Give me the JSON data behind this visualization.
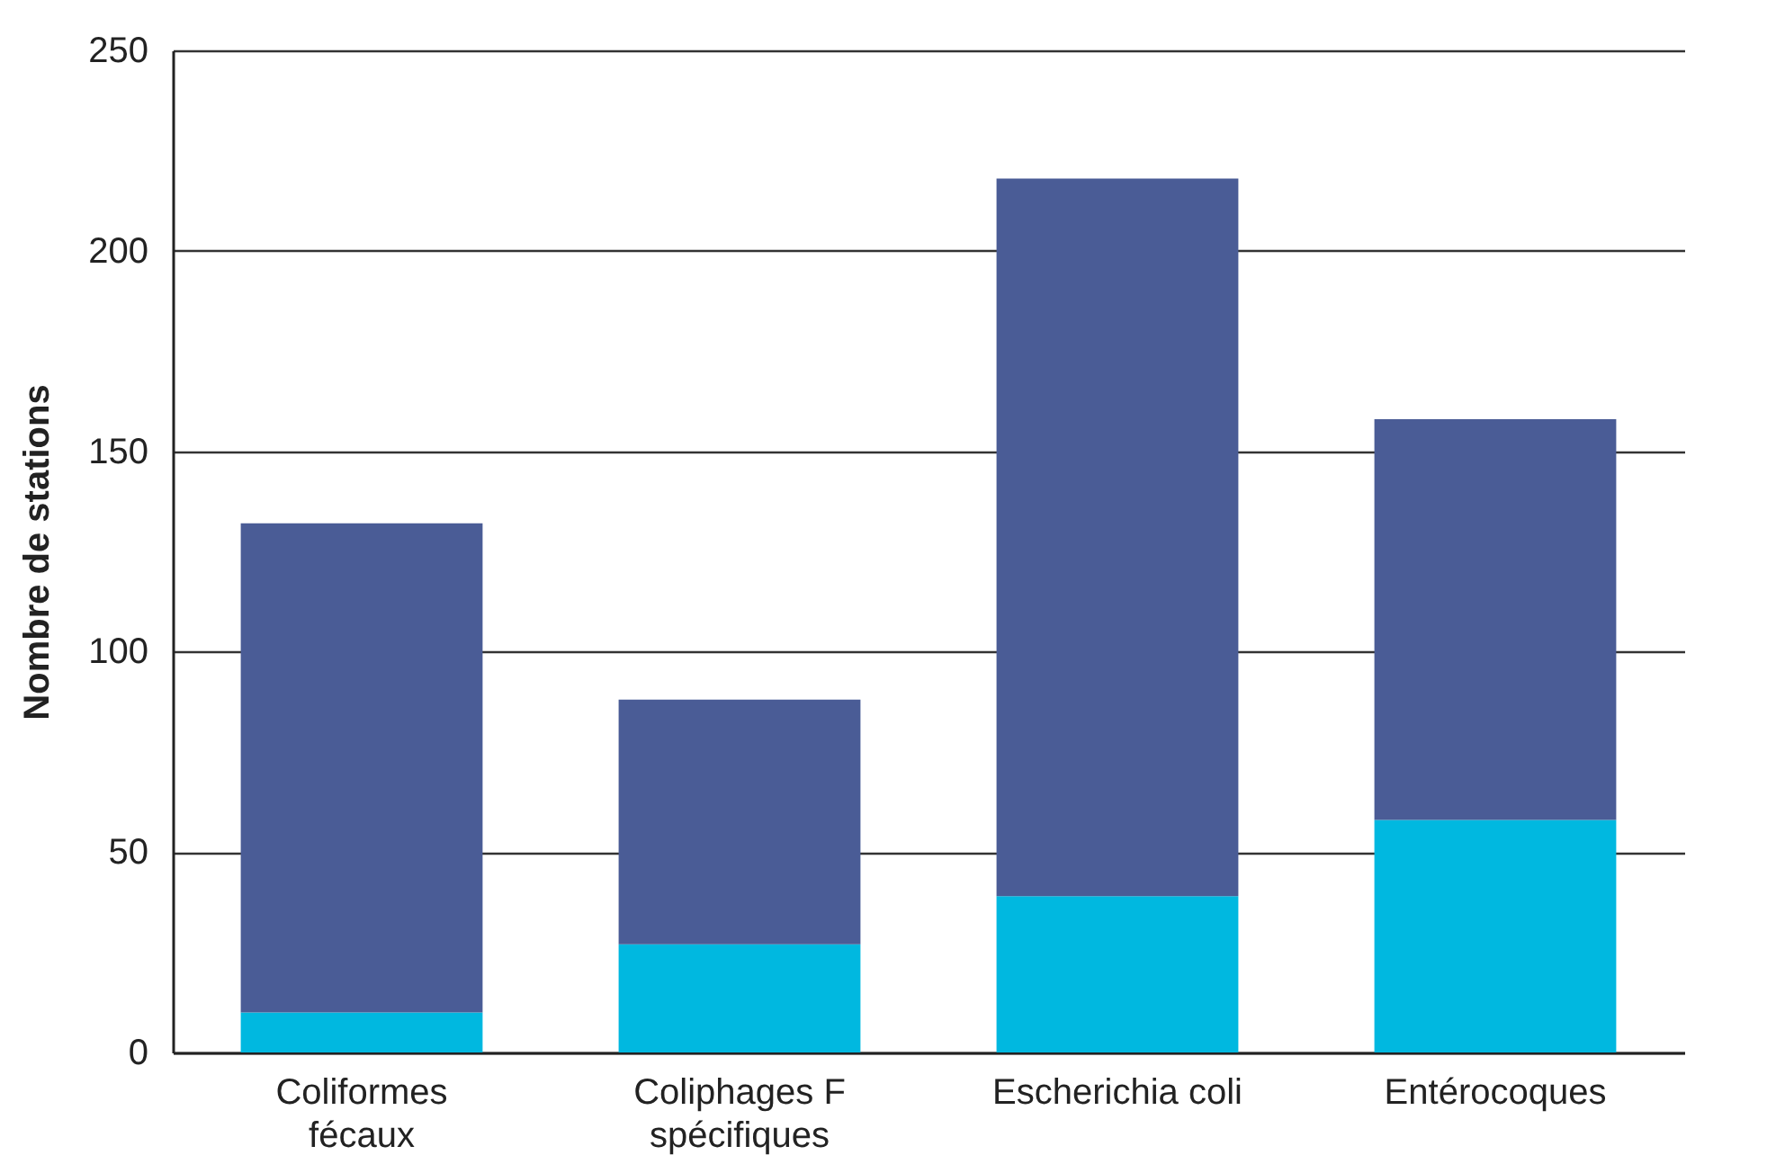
{
  "chart_data": {
    "type": "bar",
    "ylabel": "Nombre de stations",
    "categories": [
      "Coliformes fécaux",
      "Coliphages F spécifiques",
      "Escherichia coli",
      "Entérocoques"
    ],
    "stacked": true,
    "series": [
      {
        "color": "#00b8e0",
        "values": [
          10,
          27,
          39,
          58
        ]
      },
      {
        "color": "#4a5c96",
        "values": [
          122,
          61,
          179,
          100
        ]
      }
    ],
    "ylim": [
      0,
      250
    ],
    "yticks": [
      0,
      50,
      100,
      150,
      200,
      250
    ],
    "grid": "y",
    "legend": false
  }
}
